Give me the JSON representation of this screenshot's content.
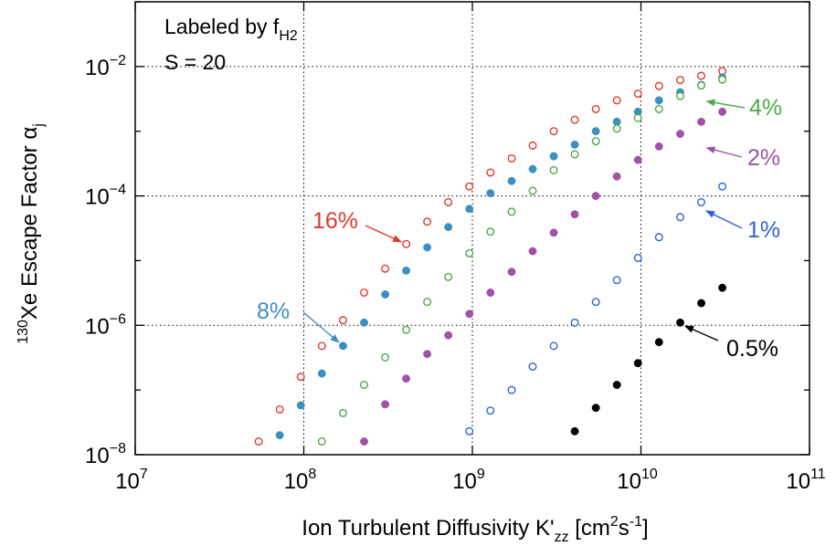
{
  "chart_data": {
    "type": "scatter",
    "title": "",
    "xlabel": {
      "main": "Ion Turbulent Diffusivity K'",
      "sub": "zz",
      "mid": " [cm",
      "sup1": "2",
      "mid2": "s",
      "sup2": "-1",
      "end": "]"
    },
    "ylabel": {
      "sup": "130",
      "main": "Xe Escape Factor α",
      "sub": "j"
    },
    "x_scale": "log",
    "y_scale": "log",
    "xlim": [
      10000000.0,
      100000000000.0
    ],
    "ylim": [
      1e-08,
      0.1
    ],
    "x_ticks": [
      {
        "value": 10000000.0,
        "base": "10",
        "exp": "7"
      },
      {
        "value": 100000000.0,
        "base": "10",
        "exp": "8"
      },
      {
        "value": 1000000000.0,
        "base": "10",
        "exp": "9"
      },
      {
        "value": 10000000000.0,
        "base": "10",
        "exp": "10"
      },
      {
        "value": 100000000000.0,
        "base": "10",
        "exp": "11"
      }
    ],
    "y_ticks": [
      {
        "value": 1e-08,
        "base": "10",
        "exp": "−8"
      },
      {
        "value": 1e-06,
        "base": "10",
        "exp": "−6"
      },
      {
        "value": 0.0001,
        "base": "10",
        "exp": "−4"
      },
      {
        "value": 0.01,
        "base": "10",
        "exp": "−2"
      }
    ],
    "grid": "dotted at labeled decades",
    "annotation_box": {
      "line1_main": "Labeled by f",
      "line1_sub": "H2",
      "line2": "S = 20"
    },
    "series": [
      {
        "label": "16%",
        "color": "#e03a2a",
        "marker": "open",
        "x": [
          54000000.0,
          72000000.0,
          96000000.0,
          128000000.0,
          171000000.0,
          228000000.0,
          304000000.0,
          405000000.0,
          540000000.0,
          720000000.0,
          960000000.0,
          1280000000.0,
          1710000000.0,
          2280000000.0,
          3040000000.0,
          4050000000.0,
          5400000000.0,
          7200000000.0,
          9600000000.0,
          12800000000.0,
          17100000000.0,
          22800000000.0,
          30400000000.0
        ],
        "y": [
          1.6e-08,
          5e-08,
          1.6e-07,
          4.8e-07,
          1.2e-06,
          3.2e-06,
          7.5e-06,
          1.8e-05,
          4e-05,
          8e-05,
          0.00014,
          0.00023,
          0.00038,
          0.0006,
          0.001,
          0.0015,
          0.0022,
          0.003,
          0.0038,
          0.005,
          0.0062,
          0.0072,
          0.0085
        ]
      },
      {
        "label": "8%",
        "color": "#3d8fc2",
        "marker": "filled",
        "x": [
          72000000.0,
          96000000.0,
          128000000.0,
          171000000.0,
          228000000.0,
          304000000.0,
          405000000.0,
          540000000.0,
          720000000.0,
          960000000.0,
          1280000000.0,
          1710000000.0,
          2280000000.0,
          3040000000.0,
          4050000000.0,
          5400000000.0,
          7200000000.0,
          9600000000.0,
          12800000000.0,
          17100000000.0,
          22800000000.0,
          30400000000.0
        ],
        "y": [
          2e-08,
          5.8e-08,
          1.8e-07,
          4.8e-07,
          1.1e-06,
          3e-06,
          7e-06,
          1.6e-05,
          3.3e-05,
          6.3e-05,
          0.00011,
          0.00017,
          0.00026,
          0.00041,
          0.00062,
          0.001,
          0.0014,
          0.002,
          0.003,
          0.004,
          0.0052,
          0.0068
        ]
      },
      {
        "label": "4%",
        "color": "#4caa48",
        "marker": "open",
        "x": [
          128000000.0,
          171000000.0,
          228000000.0,
          304000000.0,
          405000000.0,
          540000000.0,
          720000000.0,
          960000000.0,
          1280000000.0,
          1710000000.0,
          2280000000.0,
          3040000000.0,
          4050000000.0,
          5400000000.0,
          7200000000.0,
          9600000000.0,
          12800000000.0,
          17100000000.0,
          22800000000.0,
          30400000000.0
        ],
        "y": [
          1.6e-08,
          4.4e-08,
          1.2e-07,
          3.2e-07,
          8.5e-07,
          2.3e-06,
          5.6e-06,
          1.3e-05,
          2.8e-05,
          5.7e-05,
          0.00012,
          0.00025,
          0.00044,
          0.0007,
          0.0011,
          0.0016,
          0.0022,
          0.0035,
          0.0051,
          0.0063
        ]
      },
      {
        "label": "2%",
        "color": "#a052a8",
        "marker": "filled",
        "x": [
          228000000.0,
          304000000.0,
          405000000.0,
          540000000.0,
          720000000.0,
          960000000.0,
          1280000000.0,
          1710000000.0,
          2280000000.0,
          3040000000.0,
          4050000000.0,
          5400000000.0,
          7200000000.0,
          9600000000.0,
          12800000000.0,
          17100000000.0,
          22800000000.0,
          30400000000.0
        ],
        "y": [
          1.6e-08,
          6e-08,
          1.5e-07,
          3.6e-07,
          7e-07,
          1.5e-06,
          3.2e-06,
          6.7e-06,
          1.4e-05,
          2.7e-05,
          5.2e-05,
          0.0001,
          0.0002,
          0.00036,
          0.00058,
          0.00091,
          0.0014,
          0.002
        ]
      },
      {
        "label": "1%",
        "color": "#2d63d8",
        "marker": "open",
        "x": [
          960000000.0,
          1280000000.0,
          1710000000.0,
          2280000000.0,
          3040000000.0,
          4050000000.0,
          5400000000.0,
          7200000000.0,
          9600000000.0,
          12800000000.0,
          17100000000.0,
          22800000000.0,
          30400000000.0
        ],
        "y": [
          2.3e-08,
          4.8e-08,
          1e-07,
          2.3e-07,
          4.8e-07,
          1.1e-06,
          2.3e-06,
          5e-06,
          1.1e-05,
          2.3e-05,
          4.7e-05,
          8e-05,
          0.00014
        ]
      },
      {
        "label": "0.5%",
        "color": "#000000",
        "marker": "filled",
        "x": [
          4050000000.0,
          5400000000.0,
          7200000000.0,
          9600000000.0,
          12800000000.0,
          17100000000.0,
          22800000000.0,
          30400000000.0
        ],
        "y": [
          2.3e-08,
          5.3e-08,
          1.2e-07,
          2.6e-07,
          5.5e-07,
          1.1e-06,
          2.2e-06,
          3.8e-06
        ]
      }
    ],
    "annotations": [
      {
        "text": "16%",
        "color": "#e03a2a",
        "target": [
          405000000.0,
          1.8e-05
        ]
      },
      {
        "text": "8%",
        "color": "#3d8fc2",
        "target": [
          171000000.0,
          4.8e-07
        ]
      },
      {
        "text": "4%",
        "color": "#4caa48",
        "target": [
          22800000000.0,
          0.003
        ]
      },
      {
        "text": "2%",
        "color": "#a052a8",
        "target": [
          22800000000.0,
          0.00058
        ]
      },
      {
        "text": "1%",
        "color": "#2d63d8",
        "target": [
          22800000000.0,
          6.4e-05
        ]
      },
      {
        "text": "0.5%",
        "color": "#000000",
        "target": [
          17100000000.0,
          1.05e-06
        ]
      }
    ]
  }
}
